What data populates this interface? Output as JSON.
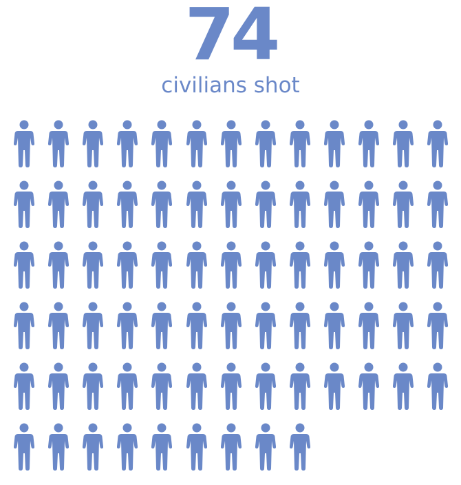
{
  "headline": {
    "number": "74",
    "caption": "civilians shot"
  },
  "chart_data": {
    "type": "pictogram",
    "value": 74,
    "unit": "civilians shot",
    "icon": "person-icon",
    "icons_per_row": 13,
    "rows": 6,
    "colors": {
      "accent": "#6a88c8"
    }
  }
}
